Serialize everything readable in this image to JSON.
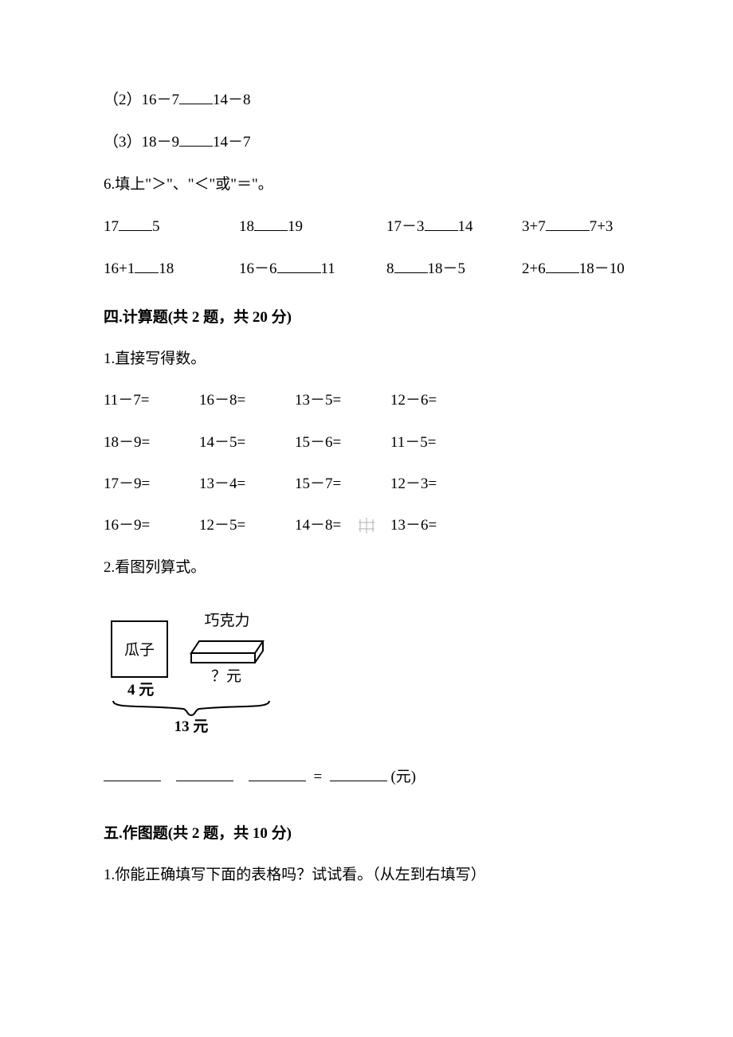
{
  "q5": {
    "item2": "（2）16－7",
    "item2b": "14－8",
    "item3": "（3）18－9",
    "item3b": "14－7"
  },
  "q6": {
    "title": "6.填上\"＞\"、\"＜\"或\"＝\"。",
    "r1": {
      "a": "17",
      "b": "5",
      "c": "18",
      "d": "19",
      "e": "17－3",
      "f": "14",
      "g": "3+7",
      "h": "7+3"
    },
    "r2": {
      "a": "16+1",
      "b": "18",
      "c": "16－6",
      "d": "11",
      "e": "8",
      "f": "18－5",
      "g": "2+6",
      "h": "18－10"
    }
  },
  "s4": {
    "title": "四.计算题(共 2 题，共 20 分)",
    "q1": "1.直接写得数。",
    "rows": [
      [
        "11－7=",
        "16－8=",
        "13－5=",
        "12－6="
      ],
      [
        "18－9=",
        "14－5=",
        "15－6=",
        "11－5="
      ],
      [
        "17－9=",
        "13－4=",
        "15－7=",
        "12－3="
      ],
      [
        "16－9=",
        "12－5=",
        "14－8=",
        "13－6="
      ]
    ],
    "q2": "2.看图列算式。"
  },
  "diagram": {
    "seeds": "瓜子",
    "choco": "巧克力",
    "price_seeds": "4 元",
    "price_choco": "？元",
    "total": "13 元"
  },
  "eq": {
    "equals": "=",
    "unit": "(元)"
  },
  "s5": {
    "title": "五.作图题(共 2 题，共 10 分)",
    "q1": "1.你能正确填写下面的表格吗？试试看。（从左到右填写）"
  },
  "onion": {
    "rows": [
      "|||",
      "|||",
      "|||",
      "|||"
    ]
  },
  "colors": {
    "text": "#000000",
    "bg": "#ffffff",
    "gray": "#888888"
  }
}
